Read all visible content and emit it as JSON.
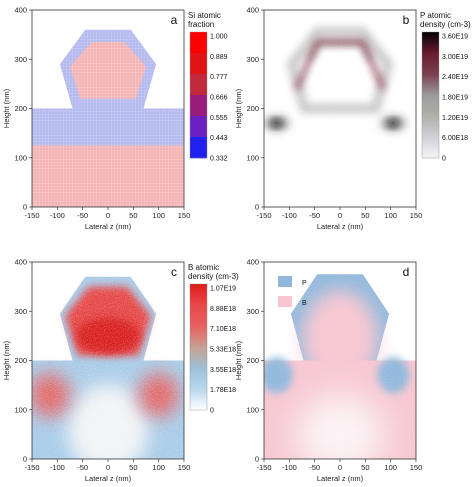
{
  "chart_data": [
    {
      "type": "heatmap",
      "panel_label": "a",
      "colorbar_title": [
        "Si atomic",
        "fraction"
      ],
      "colorbar_ticks": [
        "1.000",
        "0.889",
        "0.777",
        "0.666",
        "0.555",
        "0.443",
        "0.332"
      ],
      "xlabel": "Lateral z (nm)",
      "ylabel": "Height (nm)",
      "xlim": [
        -150,
        150
      ],
      "ylim": [
        0,
        400
      ],
      "xticks": [
        -150,
        -100,
        -50,
        0,
        50,
        100,
        150
      ],
      "yticks": [
        0,
        100,
        200,
        300,
        400
      ],
      "regions": [
        {
          "name": "lower substrate",
          "value": 0.777,
          "shape": "rect",
          "z": [
            -150,
            150
          ],
          "h": [
            0,
            125
          ]
        },
        {
          "name": "upper substrate",
          "value": 0.443,
          "shape": "rect",
          "z": [
            -150,
            150
          ],
          "h": [
            125,
            200
          ]
        },
        {
          "name": "fin shell",
          "value": 0.443,
          "shape": "hexagon",
          "h": [
            200,
            360
          ]
        },
        {
          "name": "fin core",
          "value": 0.777,
          "shape": "hexagon",
          "h": [
            220,
            335
          ]
        }
      ]
    },
    {
      "type": "heatmap",
      "panel_label": "b",
      "colorbar_title": [
        "P atomic",
        "density (cm-3)"
      ],
      "colorbar_ticks": [
        "3.60E19",
        "3.00E19",
        "2.40E19",
        "1.80E19",
        "1.20E19",
        "6.00E18",
        "0"
      ],
      "xlabel": "Lateral z (nm)",
      "ylabel": "Height (nm)",
      "xlim": [
        -150,
        150
      ],
      "ylim": [
        0,
        400
      ],
      "xticks": [
        -150,
        -100,
        -50,
        0,
        50,
        100,
        150
      ],
      "yticks": [
        0,
        100,
        200,
        300,
        400
      ],
      "hotspots": [
        {
          "z": -125,
          "h": 170,
          "value": 3.6e+19
        },
        {
          "z": 105,
          "h": 170,
          "value": 3.6e+19
        },
        {
          "z": 0,
          "h": 330,
          "value": 2.4e+19
        }
      ]
    },
    {
      "type": "heatmap",
      "panel_label": "c",
      "colorbar_title": [
        "B atomic",
        "density (cm-3)"
      ],
      "colorbar_ticks": [
        "1.07E19",
        "8.88E18",
        "7.10E18",
        "5.33E18",
        "3.55E18",
        "1.78E18",
        "0"
      ],
      "xlabel": "Lateral z (nm)",
      "ylabel": "Height (nm)",
      "xlim": [
        -150,
        150
      ],
      "ylim": [
        0,
        400
      ],
      "xticks": [
        -150,
        -100,
        -50,
        0,
        50,
        100,
        150
      ],
      "yticks": [
        0,
        100,
        200,
        300,
        400
      ],
      "hotspots": [
        {
          "z": 0,
          "h": 240,
          "value": 1.07e+19
        },
        {
          "z": -115,
          "h": 130,
          "value": 8.88e+18
        },
        {
          "z": 100,
          "h": 130,
          "value": 8.88e+18
        }
      ]
    },
    {
      "type": "heatmap",
      "panel_label": "d",
      "legend": [
        "P",
        "B"
      ],
      "legend_colors": [
        "#8fb8dc",
        "#f7c6d0"
      ],
      "xlabel": "Lateral z (nm)",
      "ylabel": "Height (nm)",
      "xlim": [
        -150,
        150
      ],
      "ylim": [
        0,
        400
      ],
      "xticks": [
        -150,
        -100,
        -50,
        0,
        50,
        100,
        150
      ],
      "yticks": [
        0,
        100,
        200,
        300,
        400
      ]
    }
  ]
}
